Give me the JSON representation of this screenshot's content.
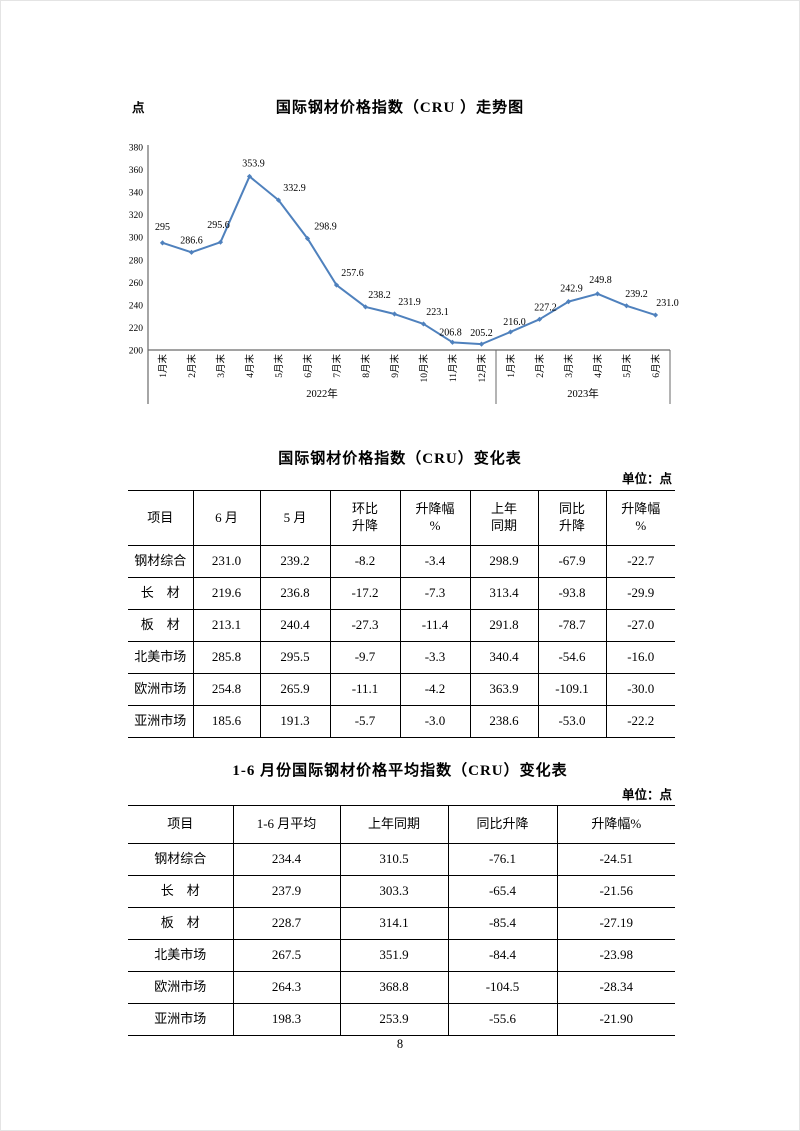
{
  "chart_data": {
    "type": "line",
    "title": "国际钢材价格指数（CRU ）走势图",
    "y_unit": "点",
    "x": [
      "1月末",
      "2月末",
      "3月末",
      "4月末",
      "5月末",
      "6月末",
      "7月末",
      "8月末",
      "9月末",
      "10月末",
      "11月末",
      "12月末",
      "1月末",
      "2月末",
      "3月末",
      "4月末",
      "5月末",
      "6月末"
    ],
    "values": [
      295,
      286.6,
      295.6,
      353.9,
      332.9,
      298.9,
      257.6,
      238.2,
      231.9,
      223.1,
      206.8,
      205.2,
      216.0,
      227.2,
      242.9,
      249.8,
      239.2,
      231.0
    ],
    "point_labels": [
      "295",
      "286.6",
      "295.6",
      "353.9",
      "332.9",
      "298.9",
      "257.6",
      "238.2",
      "231.9",
      "223.1",
      "206.8",
      "205.2",
      "216.0",
      "227.2",
      "242.9",
      "249.8",
      "239.2",
      "231.0"
    ],
    "groups": [
      {
        "label": "2022年",
        "count": 12
      },
      {
        "label": "2023年",
        "count": 6
      }
    ],
    "ylim": [
      200,
      380
    ],
    "ytick_step": 20,
    "line_color": "#4f81bd",
    "grid": false,
    "legend": "none"
  },
  "table1": {
    "title": "国际钢材价格指数（CRU）变化表",
    "unit": "单位：点",
    "headers": [
      [
        "项目"
      ],
      [
        "6 月"
      ],
      [
        "5 月"
      ],
      [
        "环比",
        "升降"
      ],
      [
        "升降幅",
        "%"
      ],
      [
        "上年",
        "同期"
      ],
      [
        "同比",
        "升降"
      ],
      [
        "升降幅",
        "%"
      ]
    ],
    "rows": [
      [
        "钢材综合",
        "231.0",
        "239.2",
        "-8.2",
        "-3.4",
        "298.9",
        "-67.9",
        "-22.7"
      ],
      [
        "长　材",
        "219.6",
        "236.8",
        "-17.2",
        "-7.3",
        "313.4",
        "-93.8",
        "-29.9"
      ],
      [
        "板　材",
        "213.1",
        "240.4",
        "-27.3",
        "-11.4",
        "291.8",
        "-78.7",
        "-27.0"
      ],
      [
        "北美市场",
        "285.8",
        "295.5",
        "-9.7",
        "-3.3",
        "340.4",
        "-54.6",
        "-16.0"
      ],
      [
        "欧洲市场",
        "254.8",
        "265.9",
        "-11.1",
        "-4.2",
        "363.9",
        "-109.1",
        "-30.0"
      ],
      [
        "亚洲市场",
        "185.6",
        "191.3",
        "-5.7",
        "-3.0",
        "238.6",
        "-53.0",
        "-22.2"
      ]
    ]
  },
  "table2": {
    "title": "1-6 月份国际钢材价格平均指数（CRU）变化表",
    "unit": "单位：点",
    "headers": [
      [
        "项目"
      ],
      [
        "1-6 月平均"
      ],
      [
        "上年同期"
      ],
      [
        "同比升降"
      ],
      [
        "升降幅%"
      ]
    ],
    "rows": [
      [
        "钢材综合",
        "234.4",
        "310.5",
        "-76.1",
        "-24.51"
      ],
      [
        "长　材",
        "237.9",
        "303.3",
        "-65.4",
        "-21.56"
      ],
      [
        "板　材",
        "228.7",
        "314.1",
        "-85.4",
        "-27.19"
      ],
      [
        "北美市场",
        "267.5",
        "351.9",
        "-84.4",
        "-23.98"
      ],
      [
        "欧洲市场",
        "264.3",
        "368.8",
        "-104.5",
        "-28.34"
      ],
      [
        "亚洲市场",
        "198.3",
        "253.9",
        "-55.6",
        "-21.90"
      ]
    ]
  },
  "page_number": "8"
}
